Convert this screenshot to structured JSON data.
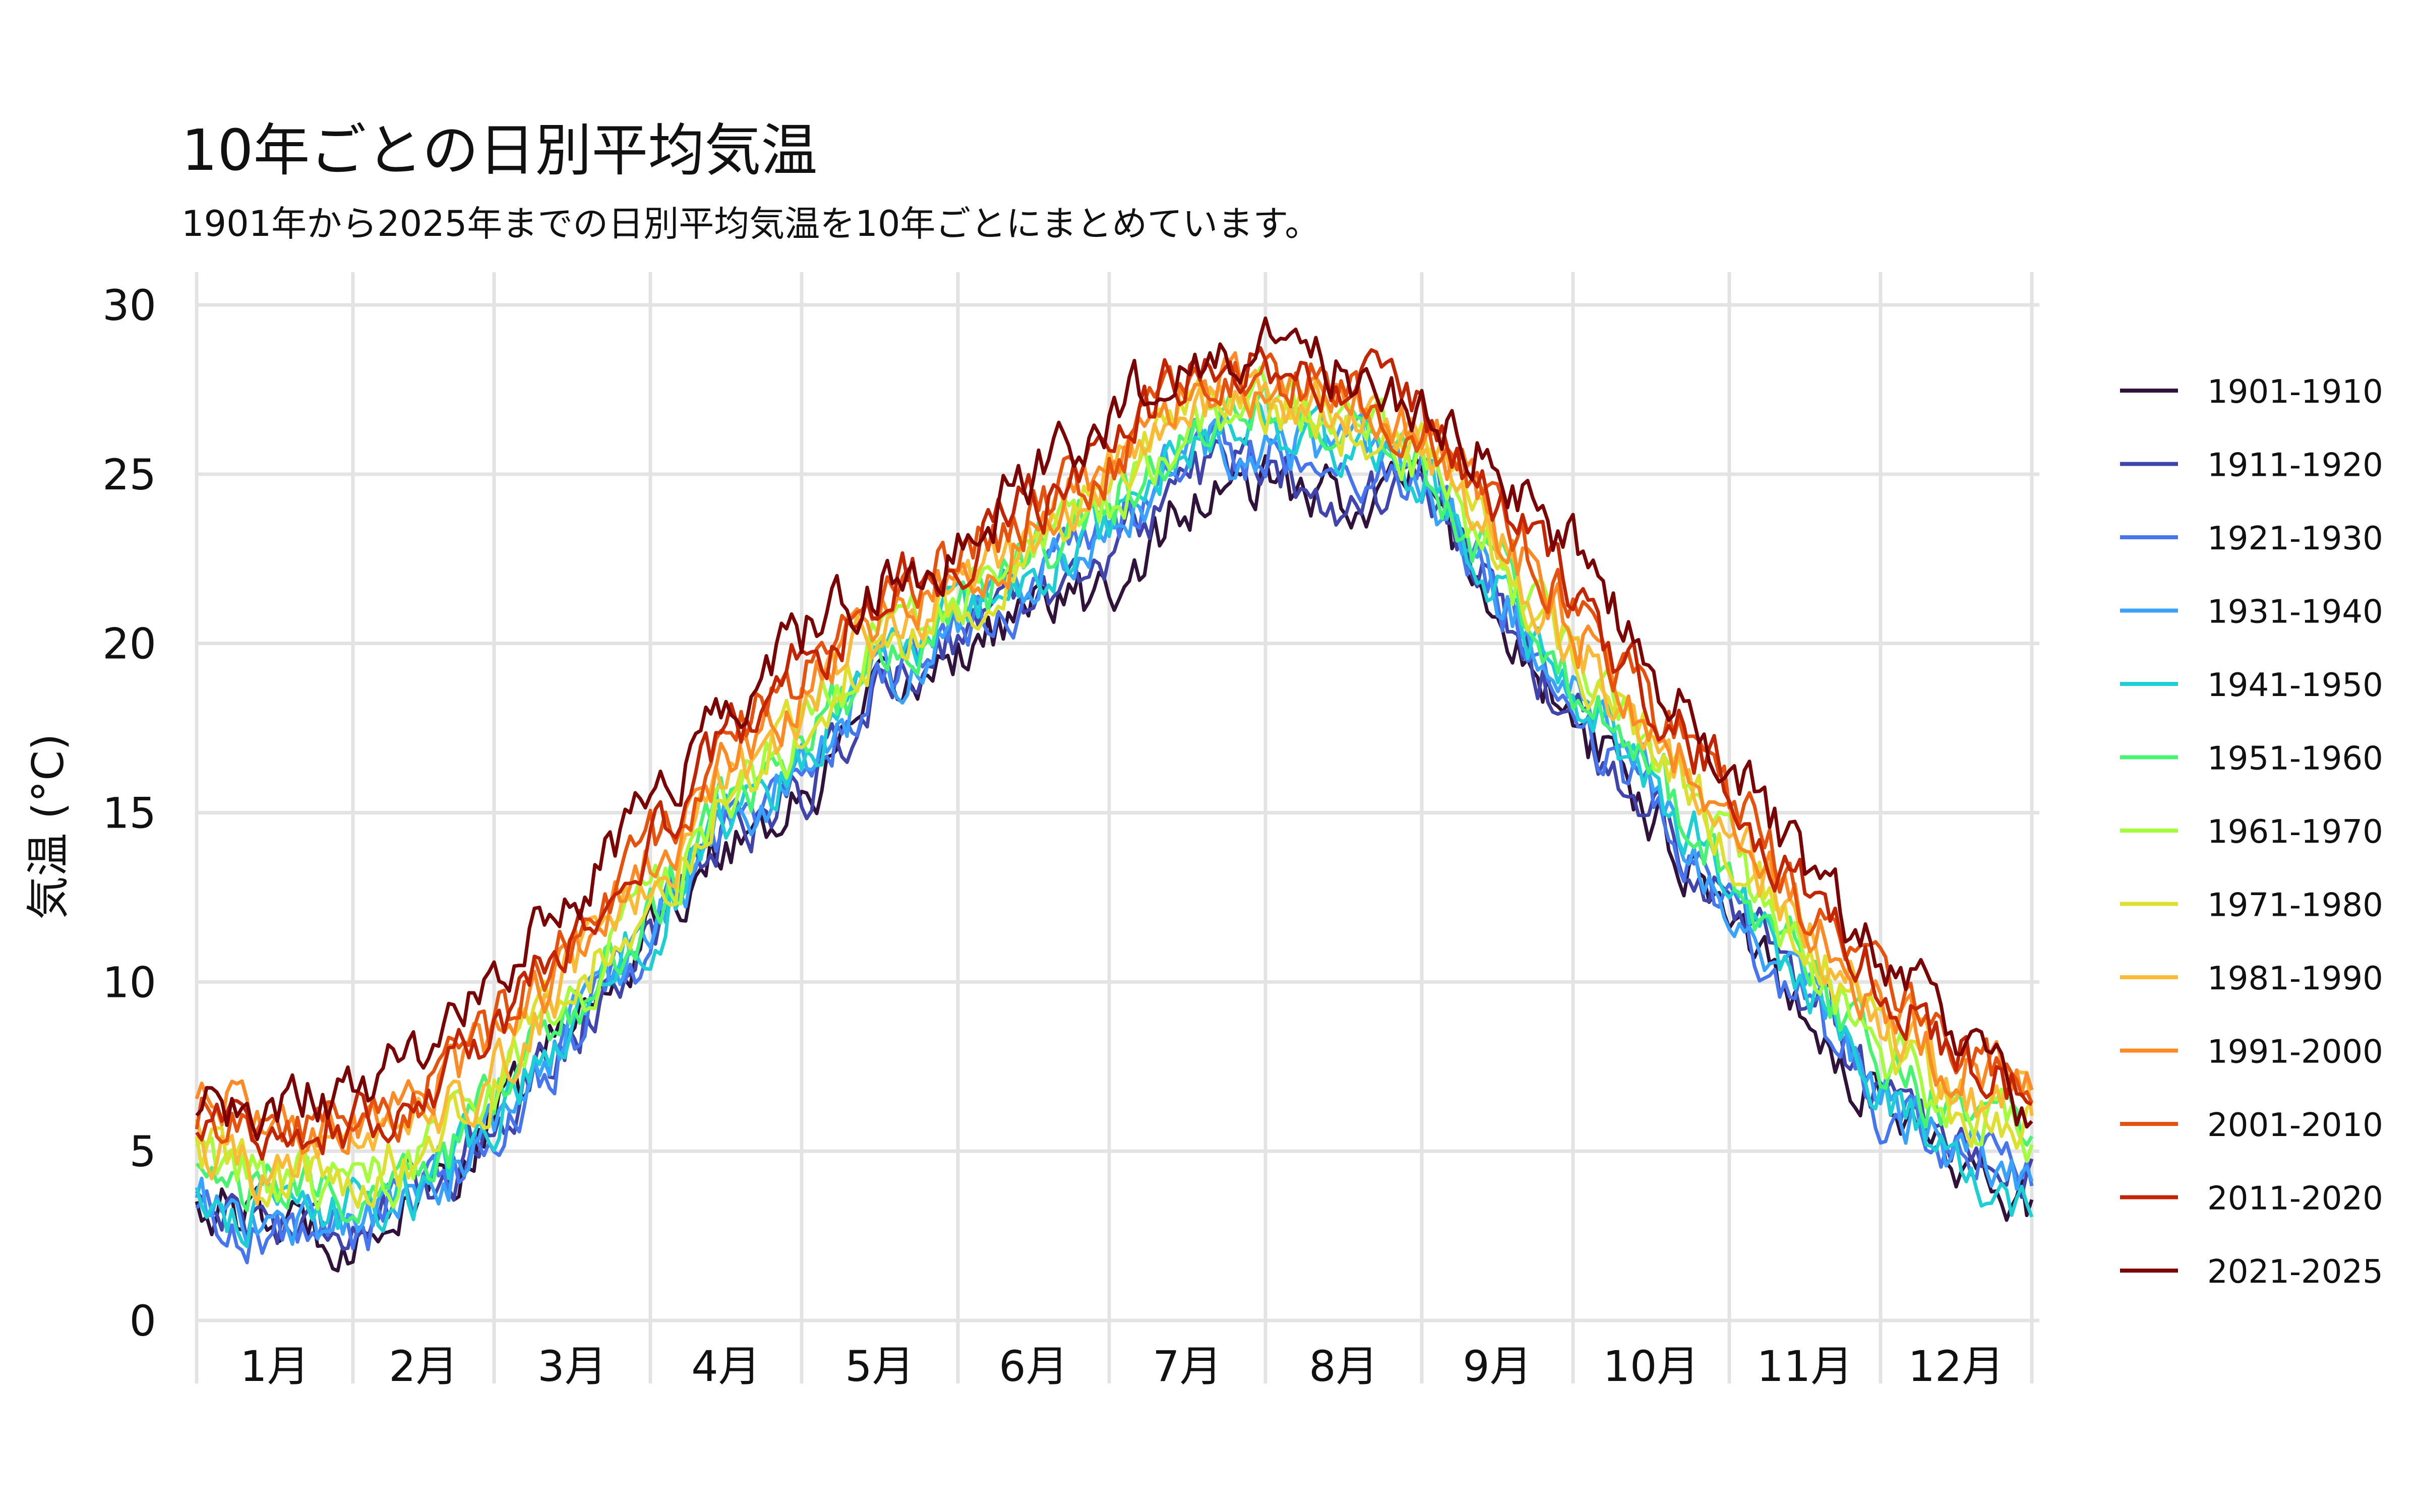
{
  "chart_data": {
    "type": "line",
    "title": "10年ごとの日別平均気温",
    "subtitle": "1901年から2025年までの日別平均気温を10年ごとにまとめています。",
    "xlabel": "",
    "ylabel": "気温 (°C)",
    "ylim": [
      0,
      30
    ],
    "yticks": [
      0,
      5,
      10,
      15,
      20,
      25,
      30
    ],
    "xlim": [
      1,
      365
    ],
    "months": [
      "1月",
      "2月",
      "3月",
      "4月",
      "5月",
      "6月",
      "7月",
      "8月",
      "9月",
      "10月",
      "11月",
      "12月"
    ],
    "grid": true,
    "legend_position": "right",
    "profile_days": [
      1,
      15,
      32,
      46,
      60,
      75,
      91,
      105,
      121,
      135,
      152,
      166,
      182,
      196,
      213,
      227,
      244,
      258,
      274,
      288,
      305,
      319,
      335,
      349,
      365
    ],
    "series": [
      {
        "name": "1901-1910",
        "color": "#30123b",
        "values": [
          3.6,
          2.8,
          2.6,
          3.4,
          5.8,
          8.8,
          11.6,
          14.2,
          15.2,
          18.0,
          19.8,
          21.0,
          21.4,
          24.0,
          24.6,
          24.2,
          24.8,
          21.0,
          17.6,
          15.4,
          12.2,
          9.4,
          6.4,
          5.0,
          3.2
        ]
      },
      {
        "name": "1911-1920",
        "color": "#4145ab",
        "values": [
          3.8,
          2.9,
          2.9,
          3.6,
          6.0,
          8.4,
          11.4,
          14.5,
          15.6,
          18.4,
          20.4,
          21.5,
          22.5,
          25.0,
          25.4,
          24.4,
          24.4,
          21.5,
          17.6,
          15.4,
          12.6,
          10.0,
          6.6,
          4.6,
          3.8
        ]
      },
      {
        "name": "1921-1930",
        "color": "#4675ed",
        "values": [
          3.2,
          2.6,
          2.6,
          3.6,
          5.4,
          8.4,
          11.2,
          14.4,
          16.0,
          18.6,
          20.4,
          21.6,
          23.2,
          25.4,
          25.8,
          25.2,
          25.2,
          21.6,
          18.0,
          15.6,
          12.4,
          9.6,
          6.4,
          4.8,
          4.4
        ]
      },
      {
        "name": "1931-1940",
        "color": "#39a2fc",
        "values": [
          3.4,
          2.8,
          3.0,
          3.6,
          5.6,
          8.6,
          11.4,
          14.6,
          16.4,
          18.8,
          20.6,
          21.8,
          23.6,
          25.6,
          26.2,
          25.6,
          25.0,
          21.8,
          18.4,
          16.0,
          12.8,
          9.8,
          6.8,
          4.9,
          4.4
        ]
      },
      {
        "name": "1941-1950",
        "color": "#1bcfd4",
        "values": [
          3.6,
          3.0,
          3.2,
          3.8,
          5.8,
          8.6,
          11.6,
          14.8,
          16.6,
          19.0,
          20.6,
          22.0,
          23.6,
          25.8,
          26.4,
          25.8,
          25.2,
          22.0,
          18.6,
          16.2,
          13.0,
          10.2,
          7.0,
          4.8,
          3.0
        ]
      },
      {
        "name": "1951-1960",
        "color": "#47f471",
        "values": [
          4.2,
          3.8,
          3.8,
          4.4,
          6.4,
          9.0,
          12.0,
          15.0,
          17.0,
          19.2,
          20.8,
          22.2,
          24.0,
          26.0,
          26.8,
          26.2,
          25.4,
          22.4,
          19.0,
          16.6,
          13.4,
          10.6,
          7.6,
          6.2,
          5.6
        ]
      },
      {
        "name": "1961-1970",
        "color": "#a4fc3c",
        "values": [
          4.6,
          4.0,
          4.2,
          4.8,
          6.8,
          9.4,
          12.2,
          15.2,
          17.4,
          19.6,
          21.0,
          22.4,
          24.2,
          26.4,
          27.2,
          26.4,
          25.6,
          22.6,
          19.4,
          17.0,
          13.8,
          11.0,
          8.0,
          6.4,
          5.2
        ]
      },
      {
        "name": "1971-1980",
        "color": "#dde02f",
        "values": [
          4.8,
          4.2,
          4.2,
          5.0,
          7.0,
          9.8,
          12.6,
          15.4,
          17.6,
          19.8,
          21.2,
          22.6,
          24.4,
          26.6,
          27.2,
          26.6,
          25.8,
          22.8,
          19.6,
          17.2,
          14.0,
          11.4,
          8.4,
          6.6,
          5.6
        ]
      },
      {
        "name": "1981-1990",
        "color": "#fbb938",
        "values": [
          5.2,
          4.4,
          4.6,
          5.4,
          7.4,
          10.2,
          13.0,
          15.8,
          18.0,
          20.4,
          21.6,
          22.8,
          24.8,
          27.0,
          27.6,
          27.2,
          26.2,
          23.2,
          20.0,
          17.6,
          14.4,
          11.8,
          8.8,
          7.0,
          6.2
        ]
      },
      {
        "name": "1991-2000",
        "color": "#fe8a25",
        "values": [
          7.2,
          5.8,
          6.0,
          6.6,
          8.2,
          10.6,
          13.4,
          16.2,
          18.4,
          20.8,
          21.8,
          23.2,
          25.0,
          27.2,
          27.8,
          27.4,
          26.4,
          23.6,
          20.4,
          18.0,
          14.8,
          12.2,
          9.4,
          7.6,
          7.4
        ]
      },
      {
        "name": "2001-2010",
        "color": "#e6520d",
        "values": [
          6.2,
          5.8,
          5.8,
          6.6,
          8.6,
          11.0,
          14.0,
          16.8,
          19.0,
          21.4,
          22.4,
          23.8,
          25.4,
          27.6,
          28.0,
          27.6,
          26.6,
          24.0,
          21.0,
          18.4,
          15.4,
          12.6,
          9.8,
          7.8,
          6.8
        ]
      },
      {
        "name": "2011-2020",
        "color": "#c32503",
        "values": [
          6.0,
          5.6,
          5.8,
          6.4,
          8.8,
          11.4,
          14.4,
          17.2,
          19.4,
          21.4,
          22.6,
          24.0,
          25.6,
          27.8,
          28.4,
          27.8,
          26.8,
          24.4,
          21.4,
          18.8,
          15.8,
          13.0,
          10.2,
          8.0,
          6.6
        ]
      },
      {
        "name": "2021-2025",
        "color": "#7a0403",
        "values": [
          6.4,
          6.2,
          6.8,
          7.8,
          10.0,
          12.4,
          15.4,
          17.8,
          20.2,
          21.6,
          22.8,
          25.0,
          26.6,
          28.6,
          28.8,
          28.2,
          27.0,
          25.4,
          22.8,
          19.6,
          16.4,
          13.4,
          10.6,
          8.8,
          6.0
        ]
      }
    ]
  }
}
